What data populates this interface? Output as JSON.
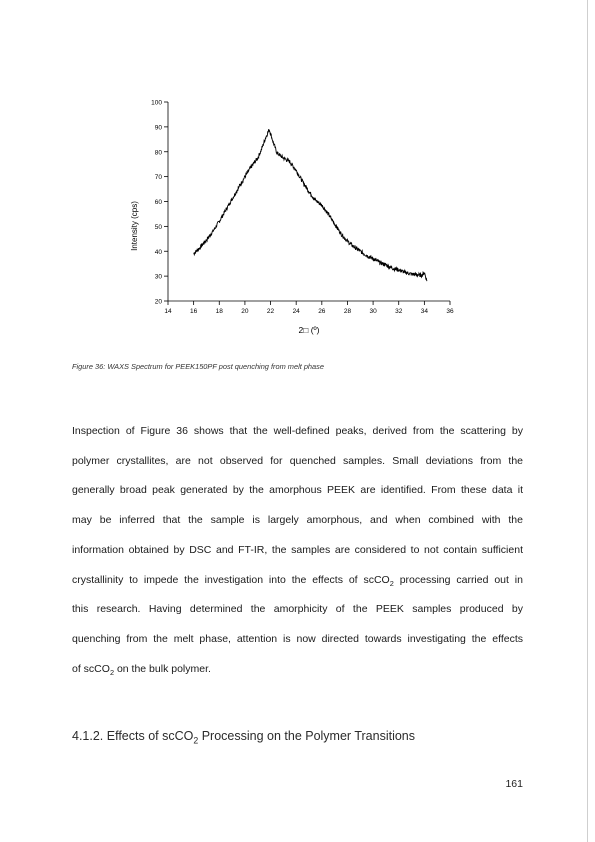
{
  "chart_data": {
    "type": "line",
    "title": "",
    "xlabel": "2□ (º)",
    "ylabel": "Intensity (cps)",
    "xlim": [
      14,
      36
    ],
    "ylim": [
      20,
      100
    ],
    "xticks": [
      14,
      16,
      18,
      20,
      22,
      24,
      26,
      28,
      30,
      32,
      34,
      36
    ],
    "yticks": [
      20,
      30,
      40,
      50,
      60,
      70,
      80,
      90,
      100
    ],
    "grid": false,
    "legend": "none",
    "line_color": "#000000",
    "series": [
      {
        "x": [
          16.0,
          16.5,
          17.0,
          17.5,
          18.0,
          18.5,
          19.0,
          19.5,
          20.0,
          20.5,
          21.0,
          21.3,
          21.6,
          21.9,
          22.2,
          22.5,
          23.0,
          23.5,
          24.0,
          24.5,
          25.0,
          25.5,
          26.0,
          26.5,
          27.0,
          27.5,
          28.0,
          28.5,
          29.0,
          29.5,
          30.0,
          30.5,
          31.0,
          31.5,
          32.0,
          32.5,
          33.0,
          33.5,
          33.8,
          34.0,
          34.2
        ],
        "y": [
          39,
          41.5,
          44.5,
          48,
          52,
          56.5,
          61,
          65.5,
          70,
          74,
          77.5,
          81,
          85.5,
          89,
          84,
          79.5,
          77.5,
          76,
          72.5,
          68,
          64,
          60.5,
          58.5,
          55,
          51,
          47,
          44,
          41.8,
          40,
          38.3,
          37,
          35.5,
          34.5,
          33.2,
          32.5,
          31.5,
          30.8,
          30.5,
          30.3,
          31.5,
          28
        ]
      }
    ]
  },
  "caption": "Figure 36: WAXS Spectrum for PEEK150PF post quenching from melt phase",
  "paragraph_lines": [
    "Inspection of Figure 36 shows that the well-defined peaks, derived from the scattering by",
    "polymer crystallites, are not observed for quenched samples. Small deviations from the",
    "generally broad peak generated by the amorphous PEEK are identified. From these data it",
    "may be inferred that the sample is largely amorphous, and when combined with the",
    "information obtained by DSC and FT-IR, the samples are considered to not contain sufficient"
  ],
  "line6": {
    "pre": "crystallinity to impede the investigation into the effects of scCO",
    "sub": "2",
    "post": " processing carried out in"
  },
  "line7": "this research. Having determined the amorphicity of the PEEK samples produced by",
  "line8": "quenching from the melt phase, attention is now directed towards investigating the effects",
  "line9": {
    "pre": "of scCO",
    "sub": "2",
    "post": " on the bulk polymer."
  },
  "heading": {
    "pre": "4.1.2. Effects of scCO",
    "sub": "2",
    "post": " Processing on the Polymer Transitions"
  },
  "page_number": "161"
}
